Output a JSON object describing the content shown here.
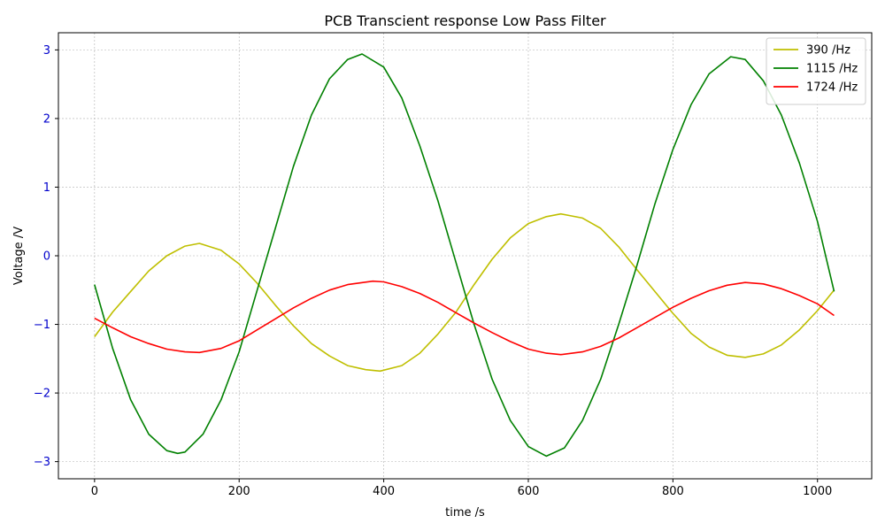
{
  "chart_data": {
    "type": "line",
    "title": "PCB Transcient response Low Pass Filter",
    "xlabel": "time /s",
    "ylabel": "Voltage /V",
    "xlim": [
      -50,
      1075
    ],
    "ylim": [
      -3.25,
      3.25
    ],
    "xticks": [
      0,
      200,
      400,
      600,
      800,
      1000
    ],
    "yticks": [
      -3,
      -2,
      -1,
      0,
      1,
      2,
      3
    ],
    "grid": true,
    "legend_position": "top-right",
    "series": [
      {
        "name": "390 /Hz",
        "color": "#bfbf00",
        "x": [
          0,
          25,
          50,
          75,
          100,
          125,
          145,
          175,
          200,
          225,
          250,
          275,
          300,
          325,
          350,
          375,
          395,
          425,
          450,
          475,
          500,
          525,
          550,
          575,
          600,
          625,
          645,
          675,
          700,
          725,
          750,
          775,
          800,
          825,
          850,
          875,
          900,
          925,
          950,
          975,
          1000,
          1023
        ],
        "y": [
          -1.18,
          -0.82,
          -0.52,
          -0.22,
          0.0,
          0.14,
          0.18,
          0.08,
          -0.12,
          -0.4,
          -0.72,
          -1.02,
          -1.28,
          -1.46,
          -1.6,
          -1.66,
          -1.68,
          -1.6,
          -1.42,
          -1.14,
          -0.82,
          -0.42,
          -0.05,
          0.26,
          0.47,
          0.57,
          0.61,
          0.55,
          0.4,
          0.13,
          -0.2,
          -0.52,
          -0.84,
          -1.13,
          -1.33,
          -1.45,
          -1.48,
          -1.43,
          -1.3,
          -1.08,
          -0.8,
          -0.5
        ]
      },
      {
        "name": "1115 /Hz",
        "color": "#008000",
        "x": [
          0,
          25,
          50,
          75,
          100,
          115,
          125,
          150,
          175,
          200,
          225,
          250,
          275,
          300,
          325,
          350,
          370,
          400,
          425,
          450,
          475,
          500,
          525,
          550,
          575,
          600,
          625,
          650,
          675,
          700,
          725,
          750,
          775,
          800,
          825,
          850,
          880,
          900,
          925,
          950,
          975,
          1000,
          1023
        ],
        "y": [
          -0.42,
          -1.35,
          -2.1,
          -2.6,
          -2.84,
          -2.88,
          -2.86,
          -2.6,
          -2.1,
          -1.4,
          -0.5,
          0.4,
          1.3,
          2.05,
          2.58,
          2.86,
          2.94,
          2.75,
          2.3,
          1.6,
          0.8,
          -0.1,
          -1.0,
          -1.8,
          -2.4,
          -2.78,
          -2.92,
          -2.8,
          -2.4,
          -1.8,
          -1.0,
          -0.15,
          0.75,
          1.55,
          2.2,
          2.65,
          2.9,
          2.86,
          2.55,
          2.05,
          1.35,
          0.5,
          -0.52
        ]
      },
      {
        "name": "1724 /Hz",
        "color": "#ff0000",
        "x": [
          0,
          25,
          50,
          75,
          100,
          125,
          145,
          175,
          200,
          225,
          250,
          275,
          300,
          325,
          350,
          385,
          400,
          425,
          450,
          475,
          500,
          525,
          550,
          575,
          600,
          625,
          645,
          675,
          700,
          725,
          750,
          775,
          800,
          825,
          850,
          875,
          900,
          925,
          950,
          975,
          1000,
          1023
        ],
        "y": [
          -0.91,
          -1.05,
          -1.18,
          -1.28,
          -1.36,
          -1.4,
          -1.41,
          -1.35,
          -1.24,
          -1.08,
          -0.92,
          -0.76,
          -0.62,
          -0.5,
          -0.42,
          -0.37,
          -0.38,
          -0.45,
          -0.55,
          -0.68,
          -0.83,
          -0.98,
          -1.12,
          -1.25,
          -1.36,
          -1.42,
          -1.44,
          -1.4,
          -1.32,
          -1.2,
          -1.05,
          -0.9,
          -0.75,
          -0.62,
          -0.51,
          -0.43,
          -0.39,
          -0.41,
          -0.48,
          -0.58,
          -0.7,
          -0.87
        ]
      }
    ]
  }
}
